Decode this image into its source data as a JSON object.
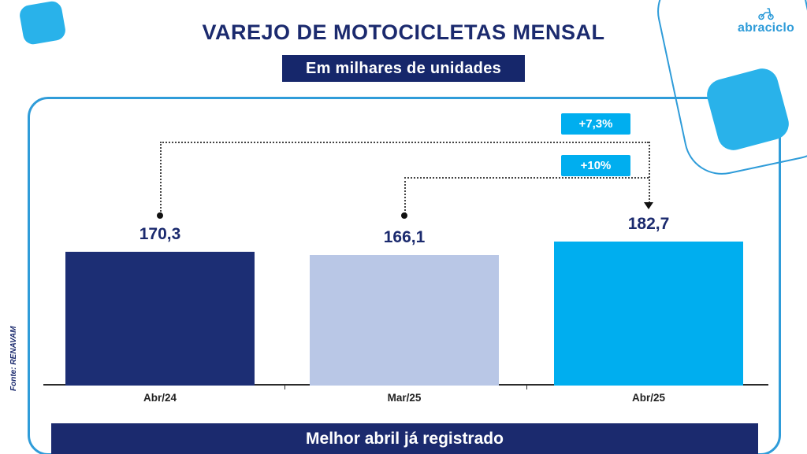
{
  "header": {
    "title": "VAREJO DE MOTOCICLETAS MENSAL",
    "subtitle": "Em milhares de unidades",
    "logo_text": "abraciclo"
  },
  "chart_data": {
    "type": "bar",
    "title": "VAREJO DE MOTOCICLETAS MENSAL",
    "unit": "milhares de unidades",
    "categories": [
      "Abr/24",
      "Mar/25",
      "Abr/25"
    ],
    "values": [
      170.3,
      166.1,
      182.7
    ],
    "value_labels": [
      "170,3",
      "166,1",
      "182,7"
    ],
    "bar_colors": [
      "#1c2e74",
      "#b9c7e6",
      "#00aeef"
    ],
    "annotations": [
      {
        "label": "+7,3%",
        "from": "Abr/24",
        "to": "Abr/25"
      },
      {
        "label": "+10%",
        "from": "Mar/25",
        "to": "Abr/25"
      }
    ],
    "ylim": [
      0,
      200
    ],
    "grid": false,
    "legend": false
  },
  "source_label": "Fonte: RENAVAM",
  "footer_banner": "Melhor abril já registrado",
  "colors": {
    "navy": "#1b2a6e",
    "cyan": "#00aeef",
    "light_blue_bar": "#b9c7e6",
    "frame_border": "#2f9cd9"
  }
}
